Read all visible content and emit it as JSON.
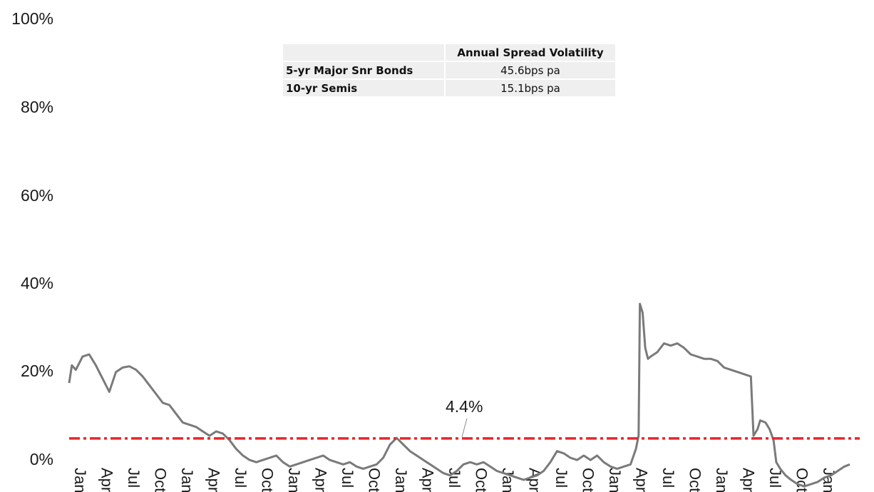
{
  "chart_data": {
    "type": "line",
    "y_axis": {
      "ticks": [
        "100%",
        "80%",
        "60%",
        "40%",
        "20%",
        "0%"
      ],
      "ylim": [
        0,
        100
      ]
    },
    "x_axis": {
      "tick_labels": [
        "Jan",
        "Apr",
        "Jul",
        "Oct",
        "Jan",
        "Apr",
        "Jul",
        "Oct",
        "Jan",
        "Apr",
        "Jul",
        "Oct",
        "Jan",
        "Apr",
        "Jul",
        "Oct",
        "Jan",
        "Apr",
        "Jul",
        "Oct",
        "Jan",
        "Apr",
        "Jul",
        "Oct",
        "Jan",
        "Apr",
        "Jul",
        "Oct",
        "Jan"
      ]
    },
    "series": [
      {
        "color": "#7a7a7a",
        "values": [
          [
            0,
            17
          ],
          [
            0.1,
            21
          ],
          [
            0.25,
            20
          ],
          [
            0.5,
            23
          ],
          [
            0.75,
            23.5
          ],
          [
            1.0,
            21
          ],
          [
            1.25,
            18
          ],
          [
            1.5,
            15
          ],
          [
            1.75,
            19.5
          ],
          [
            2.0,
            20.5
          ],
          [
            2.25,
            20.8
          ],
          [
            2.5,
            20
          ],
          [
            2.75,
            18.5
          ],
          [
            3.0,
            16.5
          ],
          [
            3.25,
            14.5
          ],
          [
            3.5,
            12.5
          ],
          [
            3.75,
            12
          ],
          [
            4.0,
            10
          ],
          [
            4.25,
            8
          ],
          [
            4.5,
            7.5
          ],
          [
            4.75,
            7
          ],
          [
            5.0,
            6
          ],
          [
            5.25,
            5
          ],
          [
            5.5,
            6
          ],
          [
            5.75,
            5.5
          ],
          [
            6.0,
            4
          ],
          [
            6.25,
            2
          ],
          [
            6.5,
            0.5
          ],
          [
            6.75,
            -0.5
          ],
          [
            7.0,
            -1
          ],
          [
            7.25,
            -0.5
          ],
          [
            7.5,
            0
          ],
          [
            7.75,
            0.5
          ],
          [
            8.0,
            -1
          ],
          [
            8.25,
            -2
          ],
          [
            8.5,
            -1.5
          ],
          [
            8.75,
            -1
          ],
          [
            9.0,
            -0.5
          ],
          [
            9.25,
            0
          ],
          [
            9.5,
            0.5
          ],
          [
            9.75,
            -0.5
          ],
          [
            10.0,
            -1
          ],
          [
            10.25,
            -1.5
          ],
          [
            10.5,
            -1
          ],
          [
            10.75,
            -2
          ],
          [
            11.0,
            -2.5
          ],
          [
            11.25,
            -2
          ],
          [
            11.5,
            -1.5
          ],
          [
            11.75,
            0
          ],
          [
            12.0,
            3
          ],
          [
            12.25,
            4.5
          ],
          [
            12.5,
            3
          ],
          [
            12.75,
            1.5
          ],
          [
            13.0,
            0.5
          ],
          [
            13.25,
            -0.5
          ],
          [
            13.5,
            -1.5
          ],
          [
            13.75,
            -2.5
          ],
          [
            14.0,
            -3.5
          ],
          [
            14.25,
            -4
          ],
          [
            14.5,
            -3
          ],
          [
            14.75,
            -1.5
          ],
          [
            15.0,
            -1
          ],
          [
            15.25,
            -1.5
          ],
          [
            15.5,
            -1
          ],
          [
            15.75,
            -2
          ],
          [
            16.0,
            -3
          ],
          [
            16.25,
            -3.5
          ],
          [
            16.5,
            -4
          ],
          [
            16.75,
            -4.5
          ],
          [
            17.0,
            -5
          ],
          [
            17.25,
            -4.5
          ],
          [
            17.5,
            -4
          ],
          [
            17.75,
            -3
          ],
          [
            18.0,
            -1
          ],
          [
            18.25,
            1.5
          ],
          [
            18.5,
            1
          ],
          [
            18.75,
            0
          ],
          [
            19.0,
            -0.5
          ],
          [
            19.25,
            0.5
          ],
          [
            19.5,
            -0.5
          ],
          [
            19.75,
            0.5
          ],
          [
            20.0,
            -1
          ],
          [
            20.25,
            -2
          ],
          [
            20.5,
            -2.5
          ],
          [
            20.75,
            -2
          ],
          [
            21.0,
            -1.5
          ],
          [
            21.2,
            2
          ],
          [
            21.3,
            5
          ],
          [
            21.35,
            35
          ],
          [
            21.45,
            33
          ],
          [
            21.55,
            25
          ],
          [
            21.65,
            22.5
          ],
          [
            21.75,
            23
          ],
          [
            22.0,
            24
          ],
          [
            22.25,
            26
          ],
          [
            22.5,
            25.5
          ],
          [
            22.75,
            26
          ],
          [
            23.0,
            25
          ],
          [
            23.25,
            23.5
          ],
          [
            23.5,
            23
          ],
          [
            23.75,
            22.5
          ],
          [
            24.0,
            22.5
          ],
          [
            24.25,
            22
          ],
          [
            24.5,
            20.5
          ],
          [
            24.75,
            20
          ],
          [
            25.0,
            19.5
          ],
          [
            25.25,
            19
          ],
          [
            25.5,
            18.5
          ],
          [
            25.6,
            5
          ],
          [
            25.75,
            6.5
          ],
          [
            25.85,
            8.5
          ],
          [
            26.05,
            8
          ],
          [
            26.2,
            6.5
          ],
          [
            26.35,
            4
          ],
          [
            26.45,
            -1
          ],
          [
            26.6,
            -2.5
          ],
          [
            26.8,
            -4
          ],
          [
            27.0,
            -5
          ],
          [
            27.25,
            -6
          ],
          [
            27.5,
            -6.5
          ],
          [
            27.75,
            -6
          ],
          [
            28.0,
            -5.5
          ],
          [
            28.25,
            -4.5
          ],
          [
            28.5,
            -4
          ],
          [
            28.75,
            -3
          ],
          [
            29.0,
            -2
          ],
          [
            29.2,
            -1.5
          ]
        ]
      }
    ],
    "reference_line": {
      "value": 4.4,
      "label": "4.4%",
      "color": "#e8262a"
    }
  },
  "table": {
    "header": "Annual Spread Volatility",
    "rows": [
      {
        "label": "5-yr Major Snr Bonds",
        "value": "45.6bps pa"
      },
      {
        "label": "10-yr Semis",
        "value": "15.1bps pa"
      }
    ]
  }
}
